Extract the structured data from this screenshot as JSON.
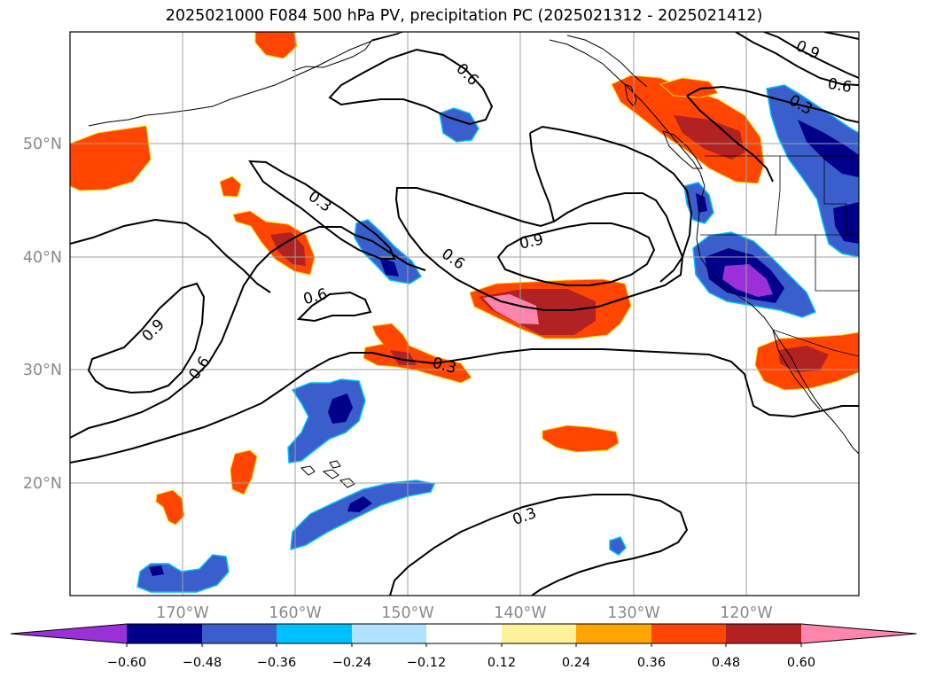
{
  "title": "2025021000 F084 500 hPa PV, precipitation PC (2025021312 - 2025021412)",
  "map": {
    "lon_labels": [
      "170°W",
      "160°W",
      "150°W",
      "140°W",
      "130°W",
      "120°W"
    ],
    "lat_labels": [
      "50°N",
      "40°N",
      "30°N",
      "20°N"
    ],
    "contour_labels": [
      "0.9",
      "0.6",
      "0.3",
      "0.3",
      "0.6",
      "0.9",
      "0.6",
      "0.6",
      "0.9",
      "0.6",
      "0.3",
      "0.3"
    ]
  },
  "colorbar": {
    "tick_labels": [
      "−0.60",
      "−0.48",
      "−0.36",
      "−0.24",
      "−0.12",
      "0.12",
      "0.24",
      "0.36",
      "0.48",
      "0.60"
    ],
    "colors": [
      "#9b30d8",
      "#00008b",
      "#3a5fcd",
      "#00bfff",
      "#aee2ff",
      "#ffffff",
      "#fff09a",
      "#ffa500",
      "#ff4500",
      "#b22222",
      "#ff85ad"
    ]
  }
}
